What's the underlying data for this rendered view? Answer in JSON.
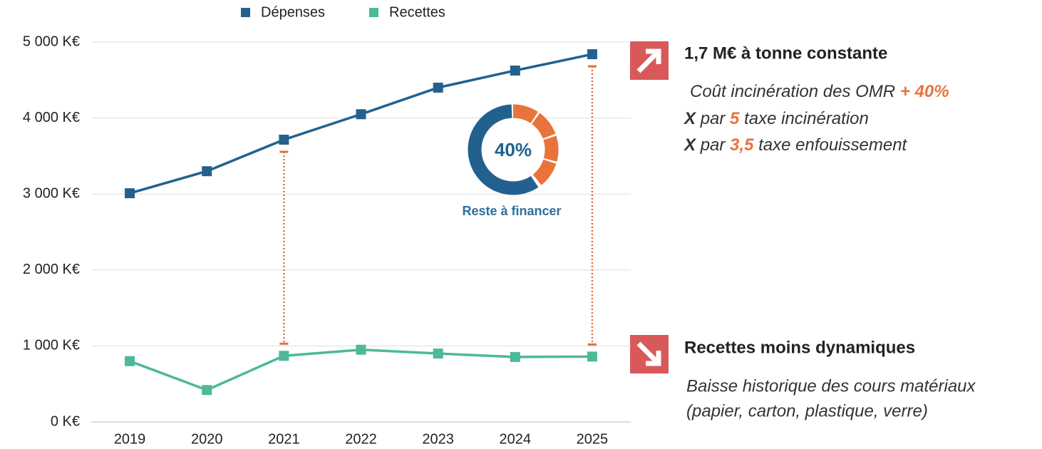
{
  "chart_data": {
    "type": "line",
    "categories": [
      "2019",
      "2020",
      "2021",
      "2022",
      "2023",
      "2024",
      "2025"
    ],
    "series": [
      {
        "name": "Dépenses",
        "color": "#22618f",
        "values": [
          3010,
          3300,
          3715,
          4050,
          4400,
          4625,
          4840
        ]
      },
      {
        "name": "Recettes",
        "color": "#4db89a",
        "values": [
          800,
          420,
          870,
          950,
          900,
          855,
          860
        ]
      }
    ],
    "ylim": [
      0,
      5000
    ],
    "yticks": [
      {
        "value": 0,
        "label": "0 K€"
      },
      {
        "value": 1000,
        "label": "1 000 K€"
      },
      {
        "value": 2000,
        "label": "2 000 K€"
      },
      {
        "value": 3000,
        "label": "3 000 K€"
      },
      {
        "value": 4000,
        "label": "4 000 K€"
      },
      {
        "value": 5000,
        "label": "5 000 K€"
      }
    ],
    "grid": true,
    "legend": "top",
    "gap_color": "#e07040",
    "donut": {
      "value": 40,
      "label": "40%",
      "caption": "Reste à financer",
      "color": "#e8743b",
      "rest_color": "#22618f"
    }
  },
  "annotations": [
    {
      "title": "1,7 M€ à tonne constante",
      "lines": [
        [
          "Coût incinération des OMR",
          "+ 40%"
        ],
        [
          "X",
          "par",
          "5",
          "taxe incinération"
        ],
        [
          "X",
          "par",
          "3,5",
          "taxe enfouissement"
        ]
      ]
    },
    {
      "title": "Recettes moins dynamiques",
      "lines": [
        [
          "Baisse historique des cours matériaux"
        ],
        [
          "(papier, carton, plastique, verre)"
        ]
      ]
    }
  ]
}
